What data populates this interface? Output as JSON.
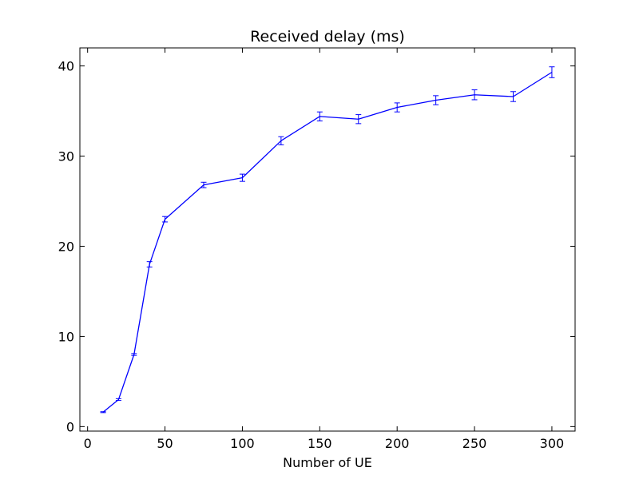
{
  "chart_data": {
    "type": "line",
    "title": "Received delay (ms)",
    "xlabel": "Number of UE",
    "ylabel": "",
    "xlim": [
      -5,
      315
    ],
    "ylim": [
      -0.5,
      42
    ],
    "xticks": [
      0,
      50,
      100,
      150,
      200,
      250,
      300
    ],
    "yticks": [
      0,
      10,
      20,
      30,
      40
    ],
    "xtick_labels": [
      "0",
      "50",
      "100",
      "150",
      "200",
      "250",
      "300"
    ],
    "ytick_labels": [
      "0",
      "10",
      "20",
      "30",
      "40"
    ],
    "grid": false,
    "legend": "none",
    "color": "#0000ff",
    "series": [
      {
        "x": [
          10,
          20,
          30,
          40,
          50,
          75,
          100,
          125,
          150,
          175,
          200,
          225,
          250,
          275,
          300
        ],
        "y": [
          1.6,
          3.0,
          8.0,
          18.0,
          23.0,
          26.8,
          27.6,
          31.7,
          34.4,
          34.1,
          35.4,
          36.2,
          36.8,
          36.6,
          39.3
        ],
        "err": [
          0.05,
          0.1,
          0.1,
          0.3,
          0.3,
          0.3,
          0.4,
          0.45,
          0.5,
          0.5,
          0.5,
          0.5,
          0.55,
          0.55,
          0.6
        ]
      }
    ]
  }
}
